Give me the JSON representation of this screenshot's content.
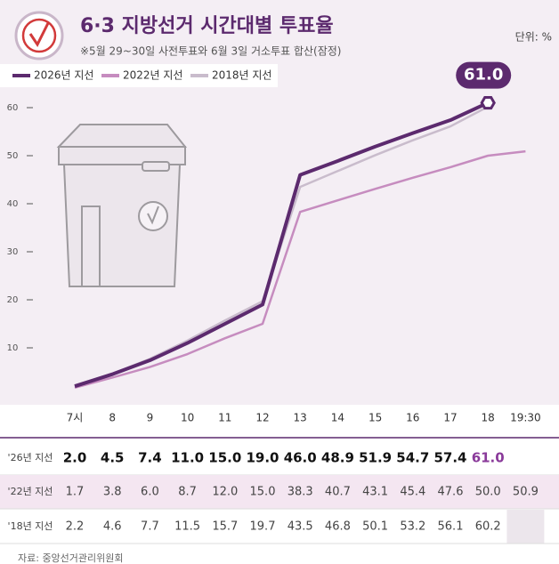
{
  "chart_data": {
    "type": "line",
    "title": "6·3 지방선거 시간대별 투표율",
    "subtitle": "※5월 29~30일 사전투표와 6월 3일 거소투표 합산(잠정)",
    "unit": "단위: %",
    "source": "자료: 중앙선거관리위원회",
    "categories": [
      "7시",
      "8",
      "9",
      "10",
      "11",
      "12",
      "13",
      "14",
      "15",
      "16",
      "17",
      "18",
      "19:30"
    ],
    "series": [
      {
        "name": "2026년 지선",
        "row_label": "'26년 지선",
        "color": "#5c2a6e",
        "values": [
          2.0,
          4.5,
          7.4,
          11.0,
          15.0,
          19.0,
          46.0,
          48.9,
          51.9,
          54.7,
          57.4,
          61.0,
          null
        ],
        "value_labels": [
          "2.0",
          "4.5",
          "7.4",
          "11.0",
          "15.0",
          "19.0",
          "46.0",
          "48.9",
          "51.9",
          "54.7",
          "57.4",
          "61.0",
          null
        ]
      },
      {
        "name": "2022년 지선",
        "row_label": "'22년 지선",
        "color": "#c68cbf",
        "values": [
          1.7,
          3.8,
          6.0,
          8.7,
          12.0,
          15.0,
          38.3,
          40.7,
          43.1,
          45.4,
          47.6,
          50.0,
          50.9
        ],
        "value_labels": [
          "1.7",
          "3.8",
          "6.0",
          "8.7",
          "12.0",
          "15.0",
          "38.3",
          "40.7",
          "43.1",
          "45.4",
          "47.6",
          "50.0",
          "50.9"
        ]
      },
      {
        "name": "2018년 지선",
        "row_label": "'18년 지선",
        "color": "#c9bccc",
        "values": [
          2.2,
          4.6,
          7.7,
          11.5,
          15.7,
          19.7,
          43.5,
          46.8,
          50.1,
          53.2,
          56.1,
          60.2,
          null
        ],
        "value_labels": [
          "2.2",
          "4.6",
          "7.7",
          "11.5",
          "15.7",
          "19.7",
          "43.5",
          "46.8",
          "50.1",
          "53.2",
          "56.1",
          "60.2",
          null
        ]
      }
    ],
    "ylim": [
      0,
      60
    ],
    "yticks": [
      10,
      20,
      30,
      40,
      50,
      60
    ]
  }
}
